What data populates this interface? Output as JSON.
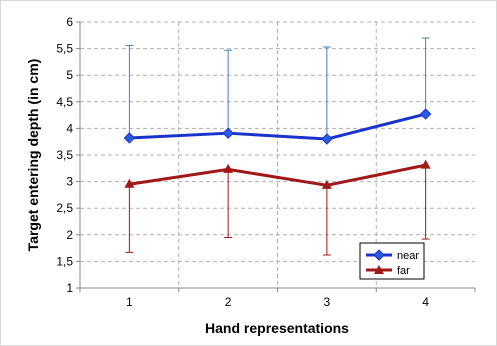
{
  "chart_data": {
    "type": "line",
    "title": "",
    "xlabel": "Hand representations",
    "ylabel": "Target entering depth (in cm)",
    "categories": [
      "1",
      "2",
      "3",
      "4"
    ],
    "ylim": [
      1,
      6
    ],
    "y_ticks": [
      "1",
      "1,5",
      "2",
      "2,5",
      "3",
      "3,5",
      "4",
      "4,5",
      "5",
      "5,5",
      "6"
    ],
    "y_tick_values": [
      1,
      1.5,
      2,
      2.5,
      3,
      3.5,
      4,
      4.5,
      5,
      5.5,
      6
    ],
    "grid": "horizontal-dashed",
    "legend_position": "right",
    "series": [
      {
        "name": "near",
        "values": [
          3.82,
          3.91,
          3.8,
          4.27
        ],
        "error_upper": [
          5.56,
          5.47,
          5.53,
          5.7
        ],
        "color": "#1a33cc",
        "errorbar_color": "#4a7fae",
        "marker": "diamond"
      },
      {
        "name": "far",
        "values": [
          2.95,
          3.23,
          2.93,
          3.31
        ],
        "error_lower": [
          1.67,
          1.95,
          1.62,
          1.92
        ],
        "color": "#a01818",
        "errorbar_color": "#a01818",
        "marker": "triangle"
      }
    ]
  }
}
